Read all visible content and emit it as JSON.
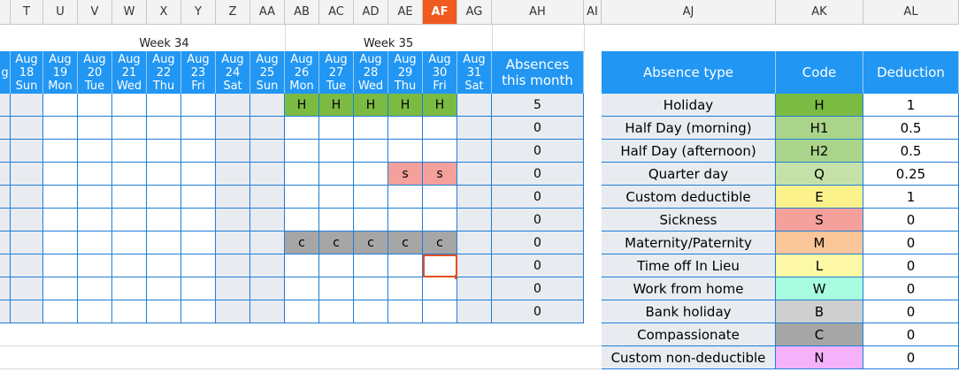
{
  "columns": [
    "T",
    "U",
    "V",
    "W",
    "X",
    "Y",
    "Z",
    "AA",
    "AB",
    "AC",
    "AD",
    "AE",
    "AF",
    "AG",
    "AH",
    "AI",
    "AJ",
    "AK",
    "AL"
  ],
  "selected_column": "AF",
  "weeks": [
    {
      "label": "Week 34"
    },
    {
      "label": "Week 35"
    }
  ],
  "days": [
    {
      "month": "Aug",
      "day": "18",
      "dow": "Sun",
      "weekend": true
    },
    {
      "month": "Aug",
      "day": "19",
      "dow": "Mon",
      "weekend": false
    },
    {
      "month": "Aug",
      "day": "20",
      "dow": "Tue",
      "weekend": false
    },
    {
      "month": "Aug",
      "day": "21",
      "dow": "Wed",
      "weekend": false
    },
    {
      "month": "Aug",
      "day": "22",
      "dow": "Thu",
      "weekend": false
    },
    {
      "month": "Aug",
      "day": "23",
      "dow": "Fri",
      "weekend": false
    },
    {
      "month": "Aug",
      "day": "24",
      "dow": "Sat",
      "weekend": true
    },
    {
      "month": "Aug",
      "day": "25",
      "dow": "Sun",
      "weekend": true
    },
    {
      "month": "Aug",
      "day": "26",
      "dow": "Mon",
      "weekend": false
    },
    {
      "month": "Aug",
      "day": "27",
      "dow": "Tue",
      "weekend": false
    },
    {
      "month": "Aug",
      "day": "28",
      "dow": "Wed",
      "weekend": false
    },
    {
      "month": "Aug",
      "day": "29",
      "dow": "Thu",
      "weekend": false
    },
    {
      "month": "Aug",
      "day": "30",
      "dow": "Fri",
      "weekend": false
    },
    {
      "month": "Aug",
      "day": "31",
      "dow": "Sat",
      "weekend": true
    }
  ],
  "absences_header": "Absences this month",
  "rows": [
    {
      "cells": [
        "",
        "",
        "",
        "",
        "",
        "",
        "",
        "",
        "H",
        "H",
        "H",
        "H",
        "H",
        ""
      ],
      "absences": "5"
    },
    {
      "cells": [
        "",
        "",
        "",
        "",
        "",
        "",
        "",
        "",
        "",
        "",
        "",
        "",
        "",
        ""
      ],
      "absences": "0"
    },
    {
      "cells": [
        "",
        "",
        "",
        "",
        "",
        "",
        "",
        "",
        "",
        "",
        "",
        "",
        "",
        ""
      ],
      "absences": "0"
    },
    {
      "cells": [
        "",
        "",
        "",
        "",
        "",
        "",
        "",
        "",
        "",
        "",
        "",
        "s",
        "s",
        ""
      ],
      "absences": "0"
    },
    {
      "cells": [
        "",
        "",
        "",
        "",
        "",
        "",
        "",
        "",
        "",
        "",
        "",
        "",
        "",
        ""
      ],
      "absences": "0"
    },
    {
      "cells": [
        "",
        "",
        "",
        "",
        "",
        "",
        "",
        "",
        "",
        "",
        "",
        "",
        "",
        ""
      ],
      "absences": "0"
    },
    {
      "cells": [
        "",
        "",
        "",
        "",
        "",
        "",
        "",
        "",
        "c",
        "c",
        "c",
        "c",
        "c",
        ""
      ],
      "absences": "0"
    },
    {
      "cells": [
        "",
        "",
        "",
        "",
        "",
        "",
        "",
        "",
        "",
        "",
        "",
        "",
        "",
        ""
      ],
      "absences": "0"
    },
    {
      "cells": [
        "",
        "",
        "",
        "",
        "",
        "",
        "",
        "",
        "",
        "",
        "",
        "",
        "",
        ""
      ],
      "absences": "0"
    },
    {
      "cells": [
        "",
        "",
        "",
        "",
        "",
        "",
        "",
        "",
        "",
        "",
        "",
        "",
        "",
        ""
      ],
      "absences": "0"
    }
  ],
  "code_colors": {
    "H": "#7cbb43",
    "s": "#f4a09b",
    "c": "#a6a6a6"
  },
  "legend": {
    "headers": {
      "type": "Absence type",
      "code": "Code",
      "deduction": "Deduction"
    },
    "items": [
      {
        "type": "Holiday",
        "code": "H",
        "deduction": "1",
        "color": "#7cbb43"
      },
      {
        "type": "Half Day (morning)",
        "code": "H1",
        "deduction": "0.5",
        "color": "#aad48a"
      },
      {
        "type": "Half Day (afternoon)",
        "code": "H2",
        "deduction": "0.5",
        "color": "#aad48a"
      },
      {
        "type": "Quarter day",
        "code": "Q",
        "deduction": "0.25",
        "color": "#c4e2a8"
      },
      {
        "type": "Custom deductible",
        "code": "E",
        "deduction": "1",
        "color": "#fbf28c"
      },
      {
        "type": "Sickness",
        "code": "S",
        "deduction": "0",
        "color": "#f4a09b"
      },
      {
        "type": "Maternity/Paternity",
        "code": "M",
        "deduction": "0",
        "color": "#fbc59a"
      },
      {
        "type": "Time off In Lieu",
        "code": "L",
        "deduction": "0",
        "color": "#fdf8a5"
      },
      {
        "type": "Work from home",
        "code": "W",
        "deduction": "0",
        "color": "#a8fde0"
      },
      {
        "type": "Bank holiday",
        "code": "B",
        "deduction": "0",
        "color": "#cfcfcf"
      },
      {
        "type": "Compassionate",
        "code": "C",
        "deduction": "0",
        "color": "#a6a6a6"
      },
      {
        "type": "Custom non-deductible",
        "code": "N",
        "deduction": "0",
        "color": "#f5b2fb"
      }
    ]
  }
}
